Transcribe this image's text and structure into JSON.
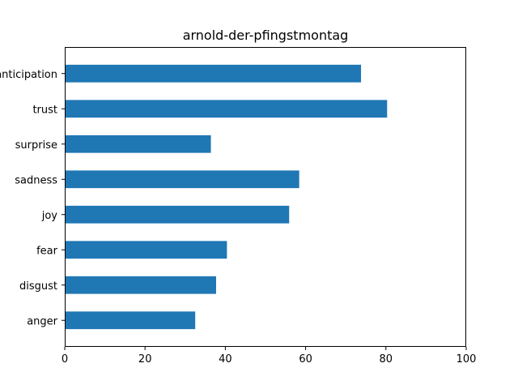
{
  "chart_data": {
    "type": "bar",
    "orientation": "horizontal",
    "title": "arnold-der-pfingstmontag",
    "xlabel": "",
    "ylabel": "",
    "categories": [
      "anger",
      "disgust",
      "fear",
      "joy",
      "sadness",
      "surprise",
      "trust",
      "anticipation"
    ],
    "values": [
      32.5,
      37.7,
      40.4,
      55.9,
      58.4,
      36.4,
      80.3,
      73.8
    ],
    "xlim": [
      0,
      100
    ],
    "xticks": [
      0,
      20,
      40,
      60,
      80,
      100
    ],
    "grid": false,
    "legend": "none",
    "bar_color": "#1f77b4"
  }
}
